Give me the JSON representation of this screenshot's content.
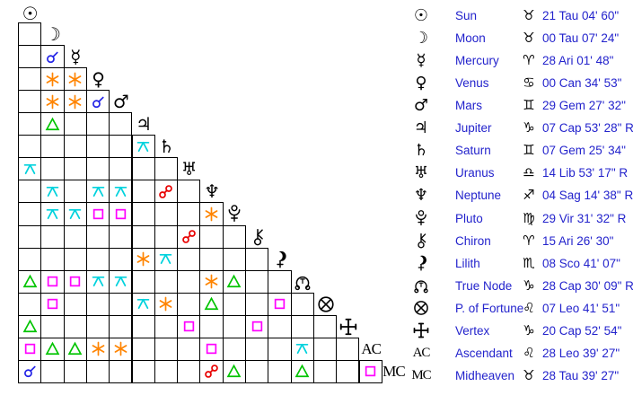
{
  "colors": {
    "legend_text": "#2323cc",
    "glyph_black": "#000000",
    "grid_line": "#000000",
    "conjunction": "#2222e6",
    "sextile": "#ff8400",
    "trine": "#00c400",
    "square": "#ff00ff",
    "opposition": "#e80000",
    "quincunx": "#00d2dd"
  },
  "aspect_grid": {
    "description": "triangular aspectarian, planets on diagonal, aspect symbols in cells",
    "planets": [
      {
        "id": "sun",
        "icon": "sun-icon",
        "aspects": []
      },
      {
        "id": "moon",
        "icon": "moon-icon",
        "aspects": []
      },
      {
        "id": "mercury",
        "icon": "mercury-icon",
        "aspects": [
          {
            "col": 1,
            "type": "conjunction"
          }
        ]
      },
      {
        "id": "venus",
        "icon": "venus-icon",
        "aspects": [
          {
            "col": 1,
            "type": "sextile"
          },
          {
            "col": 2,
            "type": "sextile"
          }
        ]
      },
      {
        "id": "mars",
        "icon": "mars-icon",
        "aspects": [
          {
            "col": 1,
            "type": "sextile"
          },
          {
            "col": 2,
            "type": "sextile"
          },
          {
            "col": 3,
            "type": "conjunction"
          }
        ]
      },
      {
        "id": "jupiter",
        "icon": "jupiter-icon",
        "aspects": [
          {
            "col": 1,
            "type": "trine"
          }
        ]
      },
      {
        "id": "saturn",
        "icon": "saturn-icon",
        "aspects": [
          {
            "col": 5,
            "type": "quincunx"
          }
        ]
      },
      {
        "id": "uranus",
        "icon": "uranus-icon",
        "aspects": [
          {
            "col": 0,
            "type": "quincunx"
          }
        ]
      },
      {
        "id": "neptune",
        "icon": "neptune-icon",
        "aspects": [
          {
            "col": 1,
            "type": "quincunx"
          },
          {
            "col": 3,
            "type": "quincunx"
          },
          {
            "col": 4,
            "type": "quincunx"
          },
          {
            "col": 6,
            "type": "opposition"
          }
        ]
      },
      {
        "id": "pluto",
        "icon": "pluto-icon",
        "aspects": [
          {
            "col": 1,
            "type": "quincunx"
          },
          {
            "col": 2,
            "type": "quincunx"
          },
          {
            "col": 3,
            "type": "square"
          },
          {
            "col": 4,
            "type": "square"
          },
          {
            "col": 8,
            "type": "sextile"
          }
        ]
      },
      {
        "id": "chiron",
        "icon": "chiron-icon",
        "aspects": [
          {
            "col": 7,
            "type": "opposition"
          }
        ]
      },
      {
        "id": "lilith",
        "icon": "lilith-icon",
        "aspects": [
          {
            "col": 5,
            "type": "sextile"
          },
          {
            "col": 6,
            "type": "quincunx"
          }
        ]
      },
      {
        "id": "truenode",
        "icon": "truenode-icon",
        "aspects": [
          {
            "col": 0,
            "type": "trine"
          },
          {
            "col": 1,
            "type": "square"
          },
          {
            "col": 2,
            "type": "square"
          },
          {
            "col": 3,
            "type": "quincunx"
          },
          {
            "col": 4,
            "type": "quincunx"
          },
          {
            "col": 8,
            "type": "sextile"
          },
          {
            "col": 9,
            "type": "trine"
          }
        ]
      },
      {
        "id": "fortune",
        "icon": "fortune-icon",
        "aspects": [
          {
            "col": 1,
            "type": "square"
          },
          {
            "col": 5,
            "type": "quincunx"
          },
          {
            "col": 6,
            "type": "sextile"
          },
          {
            "col": 8,
            "type": "trine"
          },
          {
            "col": 11,
            "type": "square"
          }
        ]
      },
      {
        "id": "vertex",
        "icon": "vertex-icon",
        "aspects": [
          {
            "col": 0,
            "type": "trine"
          },
          {
            "col": 7,
            "type": "square"
          },
          {
            "col": 10,
            "type": "square"
          }
        ]
      },
      {
        "id": "ascendant",
        "icon": "ascendant-icon",
        "aspects": [
          {
            "col": 0,
            "type": "square"
          },
          {
            "col": 1,
            "type": "trine"
          },
          {
            "col": 2,
            "type": "trine"
          },
          {
            "col": 3,
            "type": "sextile"
          },
          {
            "col": 4,
            "type": "sextile"
          },
          {
            "col": 8,
            "type": "square"
          },
          {
            "col": 12,
            "type": "quincunx"
          }
        ]
      },
      {
        "id": "midheaven",
        "icon": "midheaven-icon",
        "aspects": [
          {
            "col": 0,
            "type": "conjunction"
          },
          {
            "col": 8,
            "type": "opposition"
          },
          {
            "col": 9,
            "type": "trine"
          },
          {
            "col": 12,
            "type": "trine"
          },
          {
            "col": 15,
            "type": "square"
          }
        ]
      }
    ]
  },
  "legend": {
    "rows": [
      {
        "icon": "sun-icon",
        "name": "Sun",
        "sign_icon": "tau-icon",
        "position": "21 Tau 04' 60\""
      },
      {
        "icon": "moon-icon",
        "name": "Moon",
        "sign_icon": "tau-icon",
        "position": "00 Tau 07' 24\""
      },
      {
        "icon": "mercury-icon",
        "name": "Mercury",
        "sign_icon": "ari-icon",
        "position": "28 Ari 01' 48\""
      },
      {
        "icon": "venus-icon",
        "name": "Venus",
        "sign_icon": "can-icon",
        "position": "00 Can 34' 53\""
      },
      {
        "icon": "mars-icon",
        "name": "Mars",
        "sign_icon": "gem-icon",
        "position": "29 Gem 27' 32\""
      },
      {
        "icon": "jupiter-icon",
        "name": "Jupiter",
        "sign_icon": "cap-icon",
        "position": "07 Cap 53' 28\" R"
      },
      {
        "icon": "saturn-icon",
        "name": "Saturn",
        "sign_icon": "gem-icon",
        "position": "07 Gem 25' 34\""
      },
      {
        "icon": "uranus-icon",
        "name": "Uranus",
        "sign_icon": "lib-icon",
        "position": "14 Lib 53' 17\" R"
      },
      {
        "icon": "neptune-icon",
        "name": "Neptune",
        "sign_icon": "sag-icon",
        "position": "04 Sag 14' 38\" R"
      },
      {
        "icon": "pluto-icon",
        "name": "Pluto",
        "sign_icon": "vir-icon",
        "position": "29 Vir 31' 32\" R"
      },
      {
        "icon": "chiron-icon",
        "name": "Chiron",
        "sign_icon": "ari-icon",
        "position": "15 Ari 26' 30\""
      },
      {
        "icon": "lilith-icon",
        "name": "Lilith",
        "sign_icon": "sco-icon",
        "position": "08 Sco 41' 07\""
      },
      {
        "icon": "truenode-icon",
        "name": "True Node",
        "sign_icon": "cap-icon",
        "position": "28 Cap 30' 09\" R"
      },
      {
        "icon": "fortune-icon",
        "name": "P. of Fortune",
        "sign_icon": "leo-icon",
        "position": "07 Leo 41' 51\""
      },
      {
        "icon": "vertex-icon",
        "name": "Vertex",
        "sign_icon": "cap-icon",
        "position": "20 Cap 52' 54\""
      },
      {
        "icon": "ascendant-icon",
        "name": "Ascendant",
        "sign_icon": "leo-icon",
        "position": "28 Leo 39' 27\""
      },
      {
        "icon": "midheaven-icon",
        "name": "Midheaven",
        "sign_icon": "tau-icon",
        "position": "28 Tau 39' 27\""
      }
    ]
  }
}
